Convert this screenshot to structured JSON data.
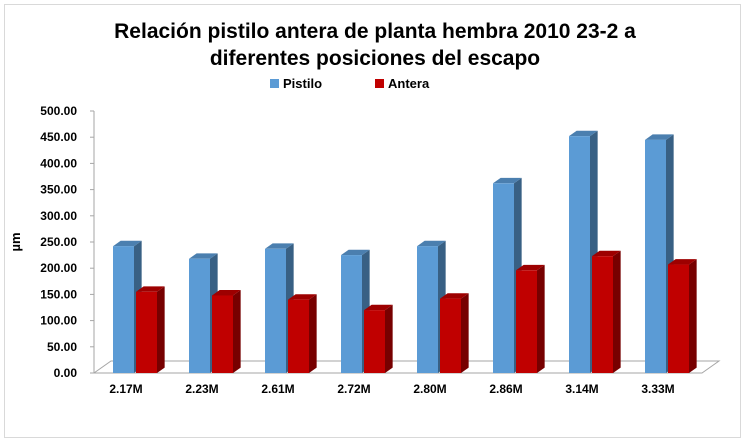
{
  "chart_data": {
    "type": "bar",
    "title": "Relación pistilo antera de planta hembra 2010 23-2 a diferentes posiciones del escapo",
    "title_lines": [
      "Relación pistilo antera de planta hembra 2010 23-2 a",
      "diferentes posiciones del escapo"
    ],
    "ylabel": "µm",
    "xlabel": "",
    "categories": [
      "2.17M",
      "2.23M",
      "2.61M",
      "2.72M",
      "2.80M",
      "2.86M",
      "3.14M",
      "3.33M"
    ],
    "series": [
      {
        "name": "Pistilo",
        "color": "#5b9bd5",
        "values": [
          242,
          218,
          237,
          225,
          242,
          362,
          452,
          445
        ]
      },
      {
        "name": "Antera",
        "color": "#c00000",
        "values": [
          155,
          148,
          140,
          120,
          142,
          196,
          223,
          207
        ]
      }
    ],
    "ylim": [
      0,
      500
    ],
    "ytick_values": [
      0,
      50,
      100,
      150,
      200,
      250,
      300,
      350,
      400,
      450,
      500
    ],
    "ytick_labels": [
      "0.00",
      "50.00",
      "100.00",
      "150.00",
      "200.00",
      "250.00",
      "300.00",
      "350.00",
      "400.00",
      "450.00",
      "500.00"
    ],
    "grid": false,
    "legend_position": "top",
    "style": "3d-column"
  }
}
